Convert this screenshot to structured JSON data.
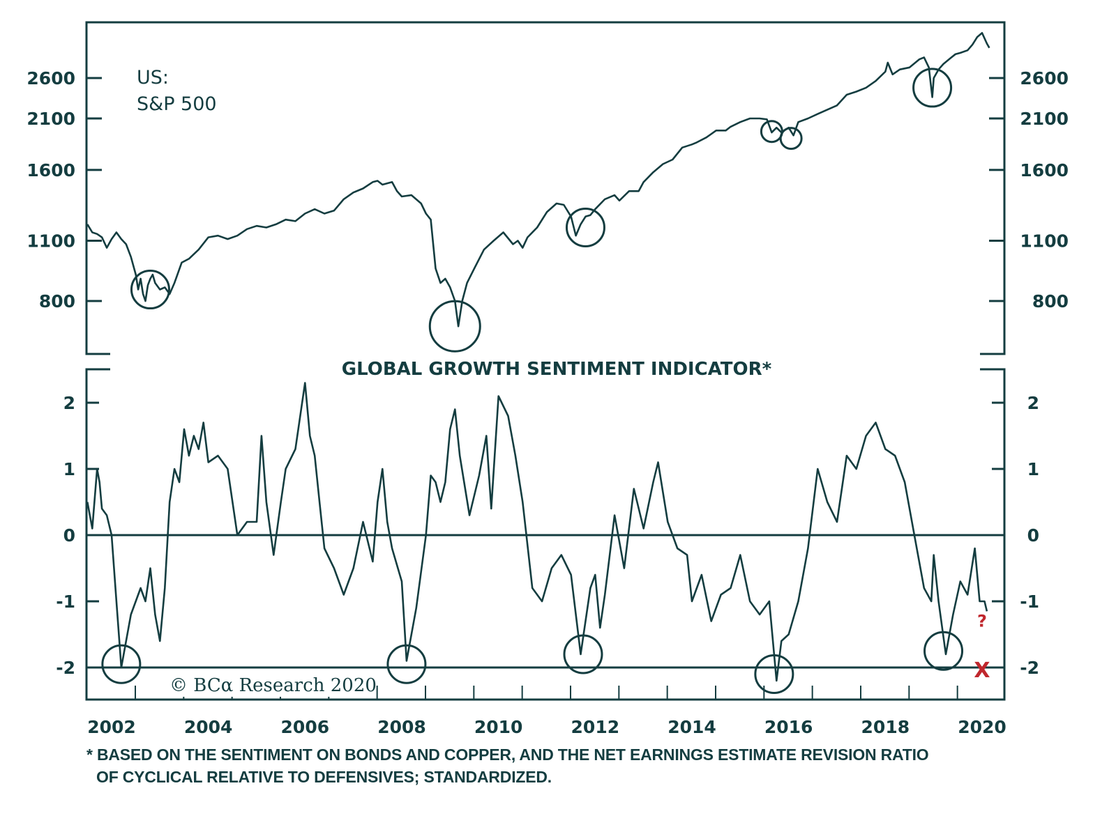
{
  "colors": {
    "line": "#143d40",
    "accent": "#c0272d",
    "background": "#ffffff"
  },
  "chart_data": [
    {
      "type": "line",
      "title": "US: S&P 500",
      "title_lines": [
        "US:",
        "S&P 500"
      ],
      "yscale": "log",
      "ylim": [
        600,
        3300
      ],
      "yticks": [
        800,
        1100,
        1600,
        2100,
        2600
      ],
      "ytick_labels": [
        "800",
        "1100",
        "1600",
        "2100",
        "2600"
      ],
      "xlim": [
        2001.5,
        2020.5
      ],
      "series": [
        {
          "name": "S&P 500",
          "x": [
            2001.5,
            2001.6,
            2001.7,
            2001.8,
            2001.9,
            2002.0,
            2002.1,
            2002.2,
            2002.3,
            2002.4,
            2002.5,
            2002.55,
            2002.6,
            2002.65,
            2002.7,
            2002.75,
            2002.8,
            2002.85,
            2002.9,
            2003.0,
            2003.1,
            2003.2,
            2003.3,
            2003.45,
            2003.6,
            2003.8,
            2004.0,
            2004.2,
            2004.4,
            2004.6,
            2004.8,
            2005.0,
            2005.2,
            2005.4,
            2005.6,
            2005.8,
            2006.0,
            2006.2,
            2006.4,
            2006.6,
            2006.8,
            2007.0,
            2007.2,
            2007.4,
            2007.5,
            2007.6,
            2007.8,
            2007.9,
            2008.0,
            2008.2,
            2008.4,
            2008.5,
            2008.6,
            2008.7,
            2008.8,
            2008.9,
            2009.0,
            2009.1,
            2009.17,
            2009.25,
            2009.35,
            2009.5,
            2009.7,
            2009.9,
            2010.1,
            2010.3,
            2010.4,
            2010.5,
            2010.6,
            2010.8,
            2011.0,
            2011.2,
            2011.35,
            2011.5,
            2011.6,
            2011.7,
            2011.8,
            2011.9,
            2012.0,
            2012.2,
            2012.4,
            2012.5,
            2012.7,
            2012.9,
            2013.0,
            2013.2,
            2013.4,
            2013.6,
            2013.8,
            2014.0,
            2014.1,
            2014.3,
            2014.5,
            2014.7,
            2014.8,
            2015.0,
            2015.2,
            2015.4,
            2015.55,
            2015.65,
            2015.75,
            2015.85,
            2016.0,
            2016.1,
            2016.2,
            2016.4,
            2016.6,
            2016.8,
            2017.0,
            2017.2,
            2017.4,
            2017.6,
            2017.8,
            2018.0,
            2018.05,
            2018.15,
            2018.3,
            2018.5,
            2018.7,
            2018.8,
            2018.9,
            2018.97,
            2019.0,
            2019.1,
            2019.2,
            2019.35,
            2019.45,
            2019.55,
            2019.7,
            2019.8,
            2019.9,
            2020.0,
            2020.1,
            2020.15
          ],
          "y": [
            1200,
            1150,
            1140,
            1120,
            1060,
            1110,
            1150,
            1110,
            1080,
            1010,
            920,
            850,
            900,
            830,
            800,
            870,
            900,
            920,
            880,
            850,
            860,
            830,
            880,
            980,
            1000,
            1050,
            1120,
            1130,
            1110,
            1130,
            1170,
            1190,
            1180,
            1200,
            1230,
            1220,
            1270,
            1300,
            1270,
            1290,
            1370,
            1420,
            1450,
            1500,
            1510,
            1480,
            1500,
            1430,
            1390,
            1400,
            1340,
            1270,
            1230,
            950,
            880,
            900,
            860,
            800,
            700,
            800,
            880,
            950,
            1050,
            1100,
            1150,
            1080,
            1100,
            1060,
            1120,
            1180,
            1280,
            1340,
            1330,
            1250,
            1130,
            1200,
            1250,
            1260,
            1300,
            1370,
            1400,
            1360,
            1430,
            1430,
            1500,
            1580,
            1650,
            1690,
            1800,
            1830,
            1850,
            1900,
            1970,
            1970,
            2010,
            2060,
            2100,
            2100,
            2090,
            1950,
            2000,
            1950,
            2000,
            1920,
            2060,
            2100,
            2150,
            2200,
            2250,
            2380,
            2420,
            2470,
            2560,
            2690,
            2820,
            2650,
            2720,
            2750,
            2870,
            2900,
            2750,
            2350,
            2600,
            2720,
            2800,
            2890,
            2950,
            2970,
            3010,
            3100,
            3230,
            3300,
            3120,
            3050
          ]
        }
      ],
      "annotations": [
        {
          "type": "circle",
          "x": 2002.8,
          "y": 850
        },
        {
          "type": "circle",
          "x": 2009.1,
          "y": 700
        },
        {
          "type": "circle",
          "x": 2011.8,
          "y": 1180
        },
        {
          "type": "circle",
          "x": 2015.65,
          "y": 1960
        },
        {
          "type": "circle",
          "x": 2016.05,
          "y": 1890
        },
        {
          "type": "circle",
          "x": 2018.97,
          "y": 2470
        }
      ]
    },
    {
      "type": "line",
      "title": "GLOBAL GROWTH SENTIMENT INDICATOR*",
      "ylim": [
        -2.5,
        2.5
      ],
      "yticks": [
        -2,
        -1,
        0,
        1,
        2
      ],
      "ytick_labels": [
        "-2",
        "-1",
        "0",
        "1",
        "2"
      ],
      "xlim": [
        2001.5,
        2020.5
      ],
      "xticks": [
        2002,
        2004,
        2006,
        2008,
        2010,
        2012,
        2014,
        2016,
        2018,
        2020
      ],
      "xtick_labels": [
        "2002",
        "2004",
        "2006",
        "2008",
        "2010",
        "2012",
        "2014",
        "2016",
        "2018",
        "2020"
      ],
      "reference_lines": [
        0,
        -2
      ],
      "series": [
        {
          "name": "Global Growth Sentiment Indicator",
          "x": [
            2001.5,
            2001.6,
            2001.7,
            2001.75,
            2001.8,
            2001.9,
            2002.0,
            2002.1,
            2002.2,
            2002.4,
            2002.6,
            2002.7,
            2002.8,
            2002.9,
            2003.0,
            2003.1,
            2003.2,
            2003.3,
            2003.4,
            2003.5,
            2003.6,
            2003.7,
            2003.8,
            2003.9,
            2004.0,
            2004.2,
            2004.4,
            2004.6,
            2004.8,
            2005.0,
            2005.1,
            2005.2,
            2005.35,
            2005.5,
            2005.6,
            2005.8,
            2006.0,
            2006.1,
            2006.2,
            2006.3,
            2006.4,
            2006.6,
            2006.8,
            2007.0,
            2007.2,
            2007.4,
            2007.5,
            2007.6,
            2007.7,
            2007.8,
            2008.0,
            2008.1,
            2008.3,
            2008.5,
            2008.6,
            2008.7,
            2008.8,
            2008.9,
            2009.0,
            2009.1,
            2009.2,
            2009.4,
            2009.6,
            2009.75,
            2009.85,
            2010.0,
            2010.2,
            2010.35,
            2010.5,
            2010.7,
            2010.9,
            2011.1,
            2011.3,
            2011.5,
            2011.7,
            2011.9,
            2012.0,
            2012.1,
            2012.2,
            2012.4,
            2012.6,
            2012.8,
            2013.0,
            2013.2,
            2013.3,
            2013.5,
            2013.7,
            2013.9,
            2014.0,
            2014.2,
            2014.4,
            2014.6,
            2014.8,
            2015.0,
            2015.2,
            2015.4,
            2015.6,
            2015.75,
            2015.85,
            2016.0,
            2016.2,
            2016.4,
            2016.6,
            2016.8,
            2017.0,
            2017.2,
            2017.4,
            2017.6,
            2017.8,
            2018.0,
            2018.2,
            2018.4,
            2018.6,
            2018.8,
            2018.95,
            2019.0,
            2019.1,
            2019.25,
            2019.4,
            2019.55,
            2019.7,
            2019.85,
            2019.95,
            2020.05,
            2020.1
          ],
          "y": [
            0.5,
            0.1,
            1.0,
            0.8,
            0.4,
            0.3,
            0.0,
            -1.0,
            -2.0,
            -1.2,
            -0.8,
            -1.0,
            -0.5,
            -1.2,
            -1.6,
            -0.8,
            0.5,
            1.0,
            0.8,
            1.6,
            1.2,
            1.5,
            1.3,
            1.7,
            1.1,
            1.2,
            1.0,
            0.0,
            0.2,
            0.2,
            1.5,
            0.5,
            -0.3,
            0.5,
            1.0,
            1.3,
            2.3,
            1.5,
            1.2,
            0.5,
            -0.2,
            -0.5,
            -0.9,
            -0.5,
            0.2,
            -0.4,
            0.5,
            1.0,
            0.2,
            -0.2,
            -0.7,
            -1.9,
            -1.1,
            0.0,
            0.9,
            0.8,
            0.5,
            0.8,
            1.6,
            1.9,
            1.2,
            0.3,
            0.9,
            1.5,
            0.4,
            2.1,
            1.8,
            1.2,
            0.5,
            -0.8,
            -1.0,
            -0.5,
            -0.3,
            -0.6,
            -1.8,
            -0.8,
            -0.6,
            -1.4,
            -0.9,
            0.3,
            -0.5,
            0.7,
            0.1,
            0.8,
            1.1,
            0.2,
            -0.2,
            -0.3,
            -1.0,
            -0.6,
            -1.3,
            -0.9,
            -0.8,
            -0.3,
            -1.0,
            -1.2,
            -1.0,
            -2.2,
            -1.6,
            -1.5,
            -1.0,
            -0.2,
            1.0,
            0.5,
            0.2,
            1.2,
            1.0,
            1.5,
            1.7,
            1.3,
            1.2,
            0.8,
            0.0,
            -0.8,
            -1.0,
            -0.3,
            -1.0,
            -1.8,
            -1.2,
            -0.7,
            -0.9,
            -0.2,
            -1.0,
            -1.0,
            -1.15
          ]
        }
      ],
      "annotations": [
        {
          "type": "circle",
          "x": 2002.2,
          "y": -1.95
        },
        {
          "type": "circle",
          "x": 2008.1,
          "y": -1.95
        },
        {
          "type": "circle",
          "x": 2011.75,
          "y": -1.8
        },
        {
          "type": "circle",
          "x": 2015.7,
          "y": -2.1
        },
        {
          "type": "circle",
          "x": 2019.2,
          "y": -1.75
        },
        {
          "type": "text",
          "x": 2020.0,
          "y": -1.28,
          "text": "?",
          "color": "#c0272d"
        },
        {
          "type": "text",
          "x": 2020.0,
          "y": -2.0,
          "text": "X",
          "color": "#c0272d"
        }
      ]
    }
  ],
  "watermark": "© BCα Research 2020",
  "footnote": {
    "line1": "* BASED ON THE SENTIMENT ON BONDS AND COPPER, AND THE NET EARNINGS ESTIMATE REVISION RATIO",
    "line2": "OF CYCLICAL RELATIVE TO DEFENSIVES; STANDARDIZED."
  }
}
